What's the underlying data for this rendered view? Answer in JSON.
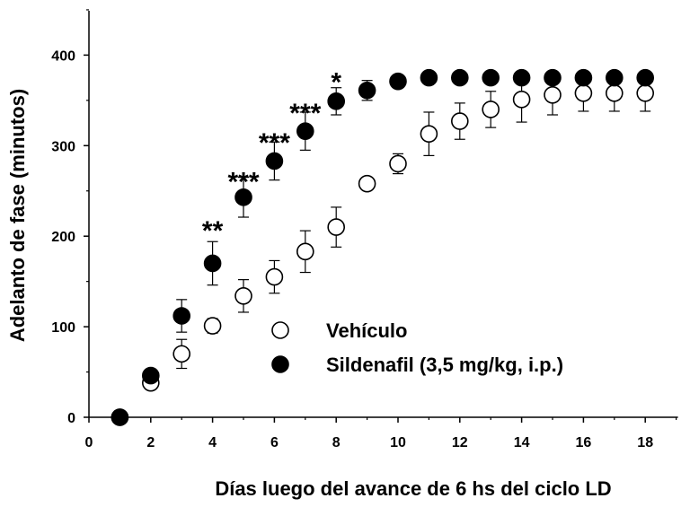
{
  "chart_data": {
    "type": "scatter",
    "xlabel": "Días luego del avance de 6 hs del ciclo LD",
    "ylabel": "Adelanto de fase (minutos)",
    "xlim": [
      0,
      19
    ],
    "ylim": [
      0,
      450
    ],
    "xticks": [
      0,
      2,
      4,
      6,
      8,
      10,
      12,
      14,
      16,
      18
    ],
    "yticks": [
      0,
      100,
      200,
      300,
      400
    ],
    "grid": false,
    "legend_position": "lower-right",
    "series": [
      {
        "name": "Vehículo",
        "marker": "open-circle",
        "x": [
          1,
          2,
          3,
          4,
          5,
          6,
          7,
          8,
          9,
          10,
          11,
          12,
          13,
          14,
          15,
          16,
          17,
          18
        ],
        "y": [
          0,
          38,
          70,
          101,
          134,
          155,
          183,
          210,
          258,
          280,
          313,
          327,
          340,
          351,
          356,
          358,
          358,
          358
        ],
        "err": [
          0,
          7,
          16,
          8,
          18,
          18,
          23,
          22,
          5,
          11,
          24,
          20,
          20,
          25,
          22,
          20,
          20,
          20
        ]
      },
      {
        "name": "Sildenafil (3,5 mg/kg, i.p.)",
        "marker": "filled-circle",
        "x": [
          1,
          2,
          3,
          4,
          5,
          6,
          7,
          8,
          9,
          10,
          11,
          12,
          13,
          14,
          15,
          16,
          17,
          18
        ],
        "y": [
          0,
          46,
          112,
          170,
          243,
          283,
          316,
          349,
          361,
          371,
          375,
          375,
          375,
          375,
          375,
          375,
          375,
          375
        ],
        "err": [
          0,
          7,
          18,
          24,
          22,
          21,
          21,
          15,
          11,
          7,
          0,
          0,
          0,
          0,
          0,
          0,
          0,
          0
        ]
      }
    ],
    "annotations": [
      {
        "text": "**",
        "x": 4,
        "y": 218
      },
      {
        "text": "***",
        "x": 5,
        "y": 272
      },
      {
        "text": "***",
        "x": 6,
        "y": 315
      },
      {
        "text": "***",
        "x": 7,
        "y": 348
      },
      {
        "text": "*",
        "x": 8,
        "y": 382
      }
    ]
  }
}
